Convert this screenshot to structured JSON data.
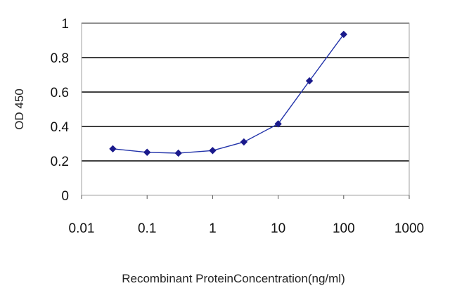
{
  "chart_data": {
    "type": "line",
    "title": "",
    "xlabel": "Recombinant ProteinConcentration(ng/ml)",
    "ylabel": "OD 450",
    "xscale": "log",
    "xlim": [
      0.01,
      1000
    ],
    "ylim": [
      0,
      1
    ],
    "x_ticks": [
      "0.01",
      "0.1",
      "1",
      "10",
      "100",
      "1000"
    ],
    "y_ticks": [
      "0",
      "0.2",
      "0.4",
      "0.6",
      "0.8",
      "1"
    ],
    "grid": "horizontal",
    "legend": "none",
    "series": [
      {
        "x": [
          0.03,
          0.1,
          0.3,
          1,
          3,
          10,
          30,
          100
        ],
        "y": [
          0.27,
          0.25,
          0.245,
          0.26,
          0.31,
          0.415,
          0.665,
          0.935
        ]
      }
    ],
    "colors": {
      "line": "#2233aa",
      "marker": "#1a1a8c",
      "grid": "#000000",
      "plot_border": "#a0a0a0"
    }
  }
}
